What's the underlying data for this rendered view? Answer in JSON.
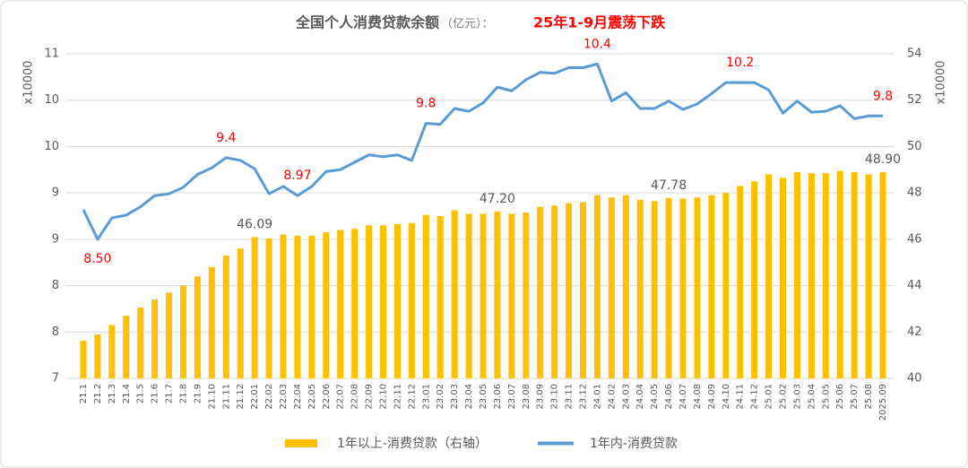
{
  "chart_data": {
    "type": "combo",
    "title": "全国个人消费贷款余额",
    "title_note": "（亿元）：",
    "title_highlight": "25年1-9月震荡下跌",
    "y_axis_label": "x10000",
    "y2_axis_label": "x10000",
    "categories": [
      "21.1",
      "21.2",
      "21.3",
      "21.4",
      "21.5",
      "21.6",
      "21.7",
      "21.8",
      "21.9",
      "21.10",
      "21.11",
      "21.12",
      "22.01",
      "22.02",
      "22.03",
      "22.04",
      "22.05",
      "22.06",
      "22.07",
      "22.08",
      "22.09",
      "22.10",
      "22.11",
      "22.12",
      "23.01",
      "23.02",
      "23.03",
      "23.04",
      "23.05",
      "23.06",
      "23.07",
      "23.08",
      "23.09",
      "23.10",
      "23.11",
      "23.12",
      "24.01",
      "24.02",
      "24.03",
      "24.04",
      "24.05",
      "24.06",
      "24.07",
      "24.08",
      "24.09",
      "24.10",
      "24.11",
      "24.12",
      "25.01",
      "25.02",
      "25.03",
      "25.04",
      "25.05",
      "25.06",
      "25.07",
      "25.08",
      "2025.09"
    ],
    "ylim": [
      7,
      10.5
    ],
    "yticks": [
      7,
      {
        "value": 7.5,
        "label": "8"
      },
      {
        "value": 8,
        "label": "8"
      },
      {
        "value": 8.5,
        "label": "9"
      },
      {
        "value": 9,
        "label": "9"
      },
      {
        "value": 9.5,
        "label": "10"
      },
      {
        "value": 10,
        "label": "10"
      },
      {
        "value": 10.5,
        "label": "11"
      }
    ],
    "y2lim": [
      40,
      54
    ],
    "y2ticks": [
      40,
      42,
      44,
      46,
      48,
      50,
      52,
      54
    ],
    "grid": true,
    "series": [
      {
        "name": "1年以上-消费贷款（右轴）",
        "type": "bar",
        "axis": "y2",
        "color": "#ffc000",
        "values": [
          41.62,
          41.9,
          42.3,
          42.7,
          43.05,
          43.4,
          43.7,
          44.0,
          44.4,
          44.8,
          45.3,
          45.6,
          46.09,
          46.03,
          46.2,
          46.15,
          46.15,
          46.3,
          46.4,
          46.45,
          46.6,
          46.6,
          46.65,
          46.7,
          47.05,
          47.0,
          47.25,
          47.1,
          47.1,
          47.2,
          47.1,
          47.15,
          47.4,
          47.45,
          47.55,
          47.6,
          47.9,
          47.8,
          47.9,
          47.7,
          47.65,
          47.78,
          47.75,
          47.8,
          47.9,
          48.0,
          48.3,
          48.5,
          48.8,
          48.65,
          48.9,
          48.85,
          48.85,
          48.95,
          48.9,
          48.8,
          48.9
        ],
        "value_labels": [
          null,
          null,
          null,
          null,
          null,
          null,
          null,
          null,
          null,
          null,
          null,
          null,
          "46.09",
          null,
          null,
          null,
          null,
          null,
          null,
          null,
          null,
          null,
          null,
          null,
          null,
          null,
          null,
          null,
          null,
          "47.20",
          null,
          null,
          null,
          null,
          null,
          null,
          null,
          null,
          null,
          null,
          null,
          "47.78",
          null,
          null,
          null,
          null,
          null,
          null,
          null,
          null,
          null,
          null,
          null,
          null,
          null,
          null,
          "48.90"
        ]
      },
      {
        "name": "1年内-消费贷款",
        "type": "line",
        "axis": "y",
        "color": "#5b9bd5",
        "values": [
          8.82,
          8.5,
          8.73,
          8.76,
          8.85,
          8.97,
          8.99,
          9.06,
          9.2,
          9.27,
          9.38,
          9.35,
          9.26,
          8.99,
          9.07,
          8.97,
          9.07,
          9.23,
          9.25,
          9.33,
          9.41,
          9.39,
          9.41,
          9.35,
          9.75,
          9.74,
          9.91,
          9.88,
          9.97,
          10.14,
          10.1,
          10.22,
          10.3,
          10.29,
          10.35,
          10.35,
          10.39,
          9.99,
          10.08,
          9.91,
          9.91,
          9.99,
          9.9,
          9.96,
          10.07,
          10.19,
          10.19,
          10.19,
          10.11,
          9.86,
          9.99,
          9.87,
          9.88,
          9.94,
          9.8,
          9.83,
          9.83
        ],
        "value_labels": [
          null,
          "8.50",
          null,
          null,
          null,
          null,
          null,
          null,
          null,
          null,
          "9.4",
          null,
          null,
          null,
          null,
          "8.97",
          null,
          null,
          null,
          null,
          null,
          null,
          null,
          null,
          "9.8",
          null,
          null,
          null,
          null,
          null,
          null,
          null,
          null,
          null,
          null,
          null,
          "10.4",
          null,
          null,
          null,
          null,
          null,
          null,
          null,
          null,
          null,
          "10.2",
          null,
          null,
          null,
          null,
          null,
          null,
          null,
          null,
          null,
          "9.8"
        ]
      }
    ]
  }
}
